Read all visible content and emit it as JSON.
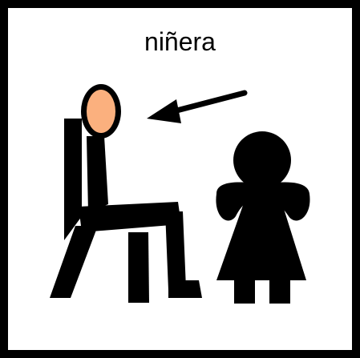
{
  "card": {
    "word": "niñera",
    "colors": {
      "border": "#000000",
      "background": "#ffffff",
      "figure": "#000000",
      "face": "#FBB07E"
    },
    "icons": [
      "seated-adult-icon",
      "arrow-icon",
      "child-icon"
    ]
  }
}
